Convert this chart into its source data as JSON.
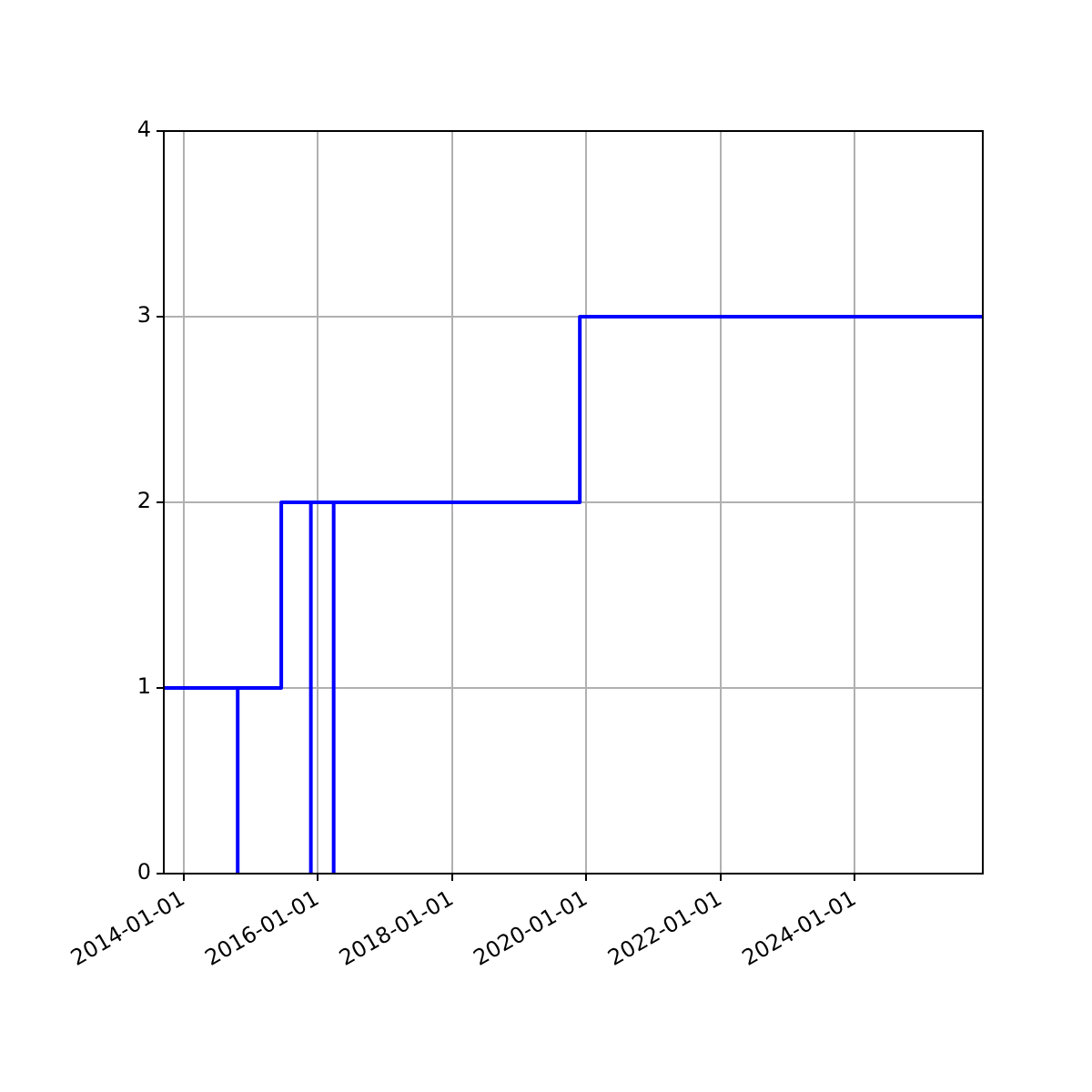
{
  "chart_data": {
    "type": "step",
    "x": [
      "2013-09-16",
      "2014-10-23",
      "2014-10-23",
      "2015-06-17",
      "2015-11-25",
      "2015-11-25",
      "2016-03-28",
      "2016-03-28",
      "2019-11-27",
      "2025-11-27"
    ],
    "series": [
      {
        "color": "#0000ff",
        "values": [
          1,
          0,
          1,
          2,
          0,
          2,
          0,
          2,
          3,
          3
        ]
      }
    ],
    "xlim": [
      "2013-09-16",
      "2025-11-27"
    ],
    "xticks": [
      "2014-01-01",
      "2016-01-01",
      "2018-01-01",
      "2020-01-01",
      "2022-01-01",
      "2024-01-01"
    ],
    "ylim": [
      0,
      4
    ],
    "yticks": [
      0,
      1,
      2,
      3,
      4
    ],
    "grid": true,
    "legend": false
  }
}
